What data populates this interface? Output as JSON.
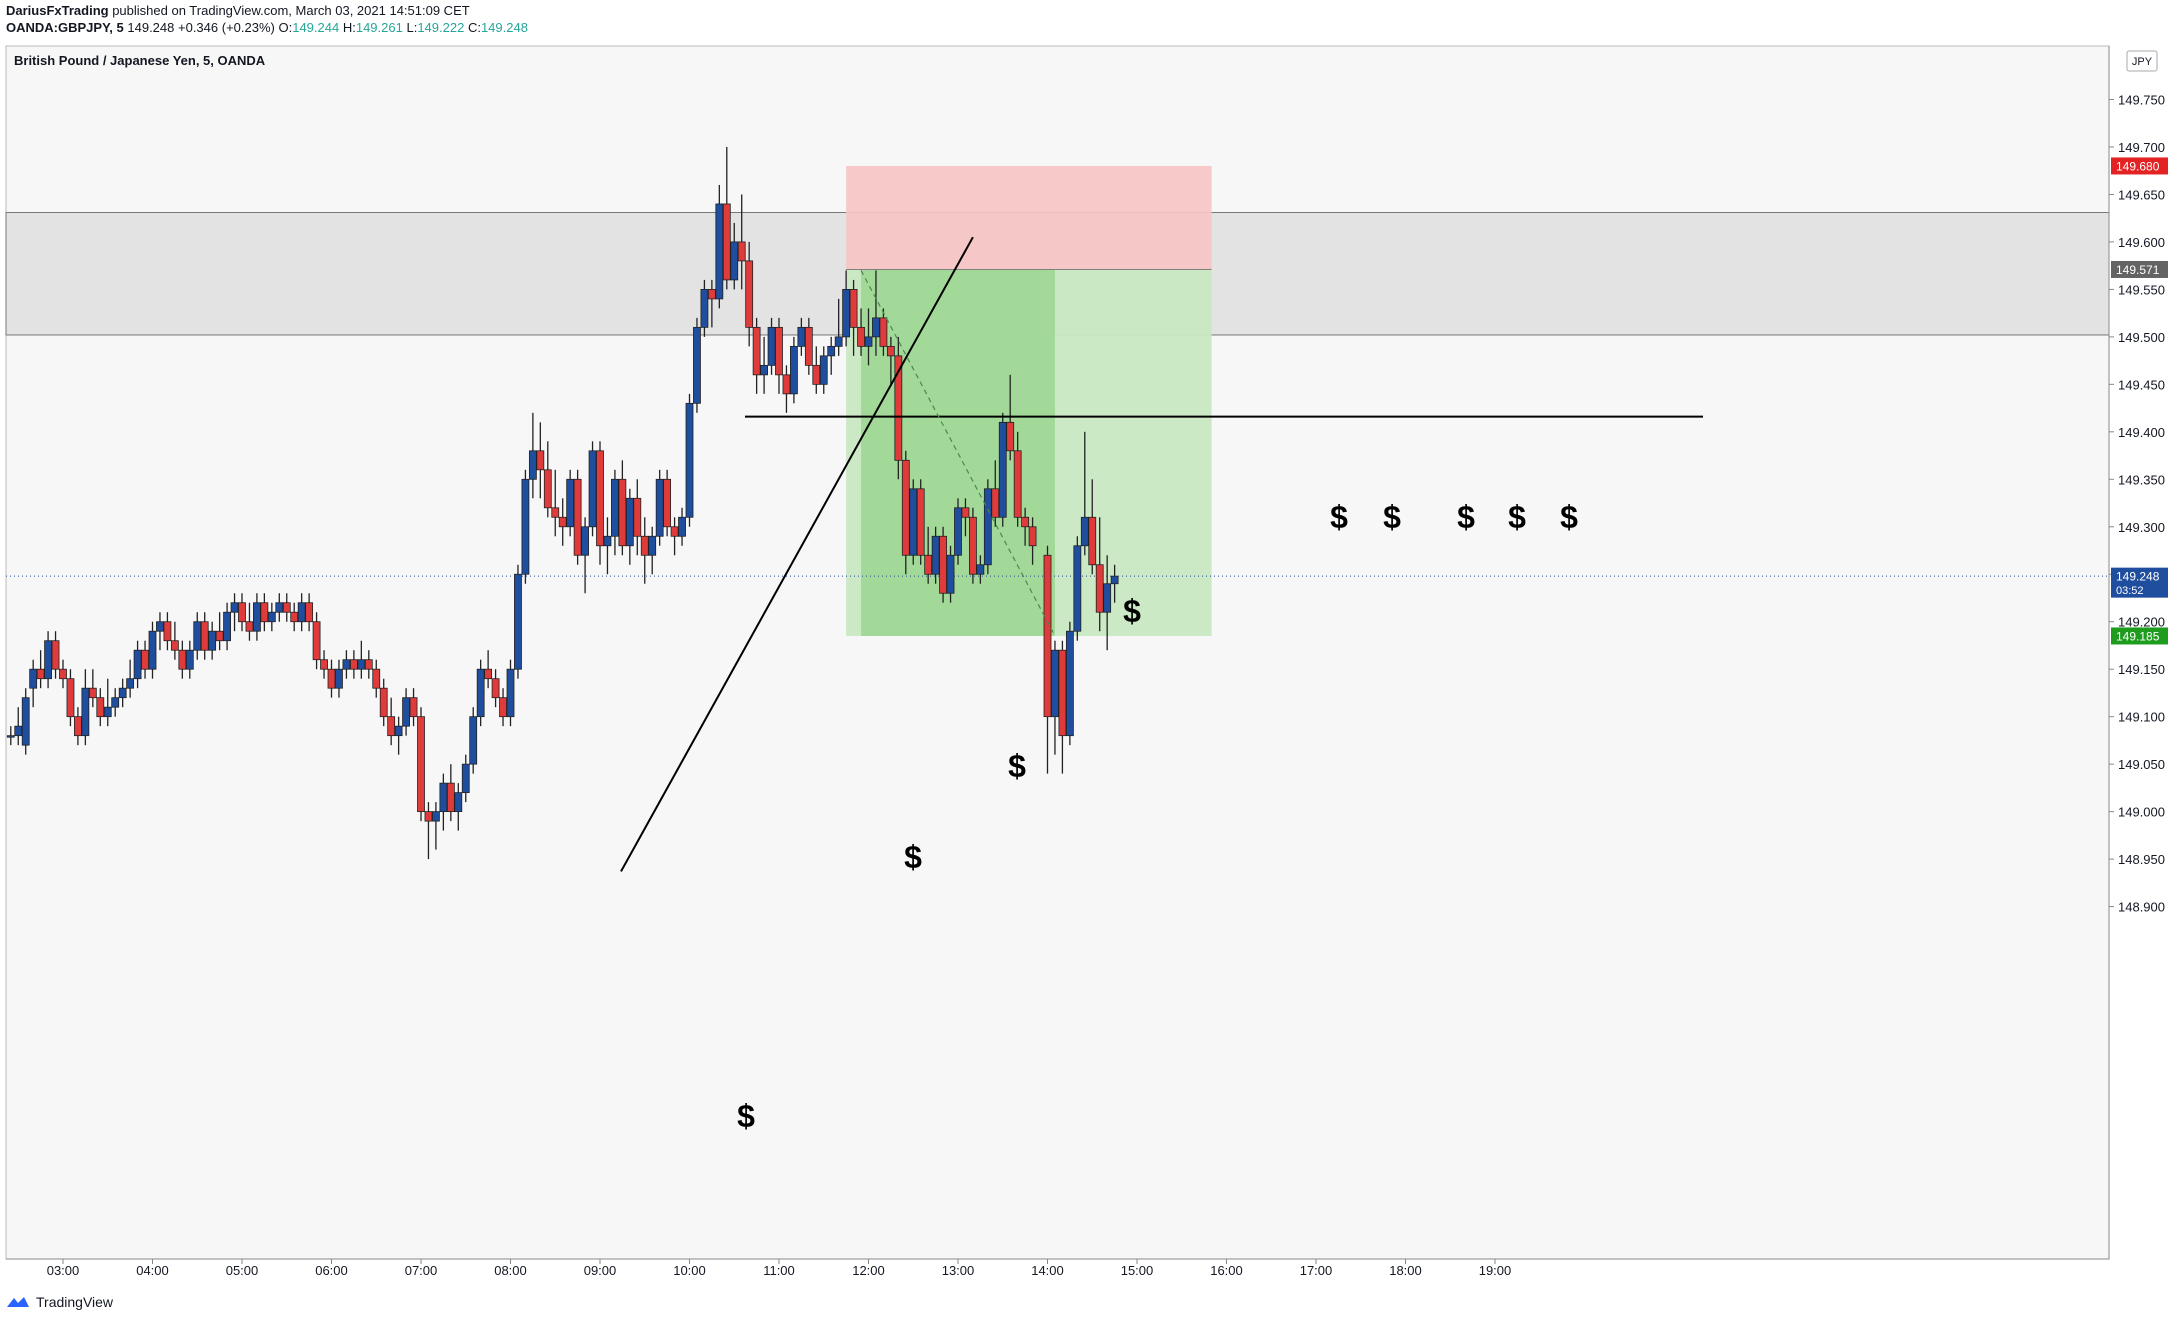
{
  "header": {
    "publisher": "DariusFxTrading",
    "published_text": "published on TradingView.com, March 03, 2021 14:51:09 CET",
    "symbol": "OANDA:GBPJPY, 5",
    "last": "149.248",
    "change": "+0.346 (+0.23%)",
    "o_label": "O:",
    "o": "149.244",
    "h_label": "H:",
    "h": "149.261",
    "l_label": "L:",
    "l": "149.222",
    "c_label": "C:",
    "c": "149.248"
  },
  "chart_title": "British Pound / Japanese Yen, 5, OANDA",
  "currency_badge": "JPY",
  "footer": {
    "brand": "TradingView"
  },
  "colors": {
    "up": "#1f4e9e",
    "down": "#e03b3b",
    "stop_zone": "#f7c4c4",
    "target_zone": "#c9e8c2",
    "target_zone_dark": "#9fd896",
    "resistance_zone": "#e3e3e3",
    "price_badge": "#1f4e9e",
    "stop_badge": "#e32323",
    "entry_badge": "#636363",
    "target_badge": "#1e9c1e"
  },
  "chart_data": {
    "type": "candlestick",
    "title": "British Pound / Japanese Yen, 5, OANDA",
    "ylim": [
      148.86,
      149.79
    ],
    "y_ticks": [
      "149.750",
      "149.700",
      "149.650",
      "149.600",
      "149.550",
      "149.500",
      "149.450",
      "149.400",
      "149.350",
      "149.300",
      "149.250",
      "149.200",
      "149.150",
      "149.100",
      "149.050",
      "149.000",
      "148.950",
      "148.900"
    ],
    "x_ticks": [
      "03:00",
      "04:00",
      "05:00",
      "06:00",
      "07:00",
      "08:00",
      "09:00",
      "10:00",
      "11:00",
      "12:00",
      "13:00",
      "14:00",
      "15:00",
      "16:00",
      "17:00",
      "18:00",
      "19:00"
    ],
    "price_labels": {
      "stop": "149.680",
      "entry": "149.571",
      "current": "149.248",
      "countdown": "03:52",
      "target": "149.185"
    },
    "resistance_zone": [
      149.502,
      149.631
    ],
    "horizontal_level": 149.416,
    "annotation_symbol": "$",
    "annotations": 10,
    "candles": [
      {
        "t": "02:25",
        "o": 149.08,
        "h": 149.09,
        "l": 149.07,
        "c": 149.08
      },
      {
        "t": "02:30",
        "o": 149.08,
        "h": 149.11,
        "l": 149.07,
        "c": 149.09
      },
      {
        "t": "02:35",
        "o": 149.07,
        "h": 149.13,
        "l": 149.06,
        "c": 149.12
      },
      {
        "t": "02:40",
        "o": 149.13,
        "h": 149.16,
        "l": 149.11,
        "c": 149.15
      },
      {
        "t": "02:45",
        "o": 149.15,
        "h": 149.17,
        "l": 149.13,
        "c": 149.14
      },
      {
        "t": "02:50",
        "o": 149.14,
        "h": 149.19,
        "l": 149.13,
        "c": 149.18
      },
      {
        "t": "02:55",
        "o": 149.18,
        "h": 149.19,
        "l": 149.14,
        "c": 149.15
      },
      {
        "t": "03:00",
        "o": 149.15,
        "h": 149.16,
        "l": 149.13,
        "c": 149.14
      },
      {
        "t": "03:05",
        "o": 149.14,
        "h": 149.15,
        "l": 149.09,
        "c": 149.1
      },
      {
        "t": "03:10",
        "o": 149.1,
        "h": 149.11,
        "l": 149.07,
        "c": 149.08
      },
      {
        "t": "03:15",
        "o": 149.08,
        "h": 149.15,
        "l": 149.07,
        "c": 149.13
      },
      {
        "t": "03:20",
        "o": 149.13,
        "h": 149.15,
        "l": 149.11,
        "c": 149.12
      },
      {
        "t": "03:25",
        "o": 149.12,
        "h": 149.13,
        "l": 149.09,
        "c": 149.1
      },
      {
        "t": "03:30",
        "o": 149.1,
        "h": 149.14,
        "l": 149.09,
        "c": 149.11
      },
      {
        "t": "03:35",
        "o": 149.11,
        "h": 149.13,
        "l": 149.1,
        "c": 149.12
      },
      {
        "t": "03:40",
        "o": 149.12,
        "h": 149.14,
        "l": 149.11,
        "c": 149.13
      },
      {
        "t": "03:45",
        "o": 149.13,
        "h": 149.16,
        "l": 149.12,
        "c": 149.14
      },
      {
        "t": "03:50",
        "o": 149.14,
        "h": 149.18,
        "l": 149.13,
        "c": 149.17
      },
      {
        "t": "03:55",
        "o": 149.17,
        "h": 149.18,
        "l": 149.14,
        "c": 149.15
      },
      {
        "t": "04:00",
        "o": 149.15,
        "h": 149.2,
        "l": 149.14,
        "c": 149.19
      },
      {
        "t": "04:05",
        "o": 149.19,
        "h": 149.21,
        "l": 149.17,
        "c": 149.2
      },
      {
        "t": "04:10",
        "o": 149.2,
        "h": 149.21,
        "l": 149.17,
        "c": 149.18
      },
      {
        "t": "04:15",
        "o": 149.18,
        "h": 149.2,
        "l": 149.16,
        "c": 149.17
      },
      {
        "t": "04:20",
        "o": 149.17,
        "h": 149.18,
        "l": 149.14,
        "c": 149.15
      },
      {
        "t": "04:25",
        "o": 149.15,
        "h": 149.18,
        "l": 149.14,
        "c": 149.17
      },
      {
        "t": "04:30",
        "o": 149.17,
        "h": 149.21,
        "l": 149.16,
        "c": 149.2
      },
      {
        "t": "04:35",
        "o": 149.2,
        "h": 149.21,
        "l": 149.16,
        "c": 149.17
      },
      {
        "t": "04:40",
        "o": 149.17,
        "h": 149.2,
        "l": 149.16,
        "c": 149.19
      },
      {
        "t": "04:45",
        "o": 149.19,
        "h": 149.21,
        "l": 149.17,
        "c": 149.18
      },
      {
        "t": "04:50",
        "o": 149.18,
        "h": 149.22,
        "l": 149.17,
        "c": 149.21
      },
      {
        "t": "04:55",
        "o": 149.21,
        "h": 149.23,
        "l": 149.19,
        "c": 149.22
      },
      {
        "t": "05:00",
        "o": 149.22,
        "h": 149.23,
        "l": 149.19,
        "c": 149.2
      },
      {
        "t": "05:05",
        "o": 149.2,
        "h": 149.22,
        "l": 149.18,
        "c": 149.19
      },
      {
        "t": "05:10",
        "o": 149.19,
        "h": 149.23,
        "l": 149.18,
        "c": 149.22
      },
      {
        "t": "05:15",
        "o": 149.22,
        "h": 149.23,
        "l": 149.19,
        "c": 149.2
      },
      {
        "t": "05:20",
        "o": 149.2,
        "h": 149.22,
        "l": 149.19,
        "c": 149.21
      },
      {
        "t": "05:25",
        "o": 149.21,
        "h": 149.23,
        "l": 149.2,
        "c": 149.22
      },
      {
        "t": "05:30",
        "o": 149.22,
        "h": 149.23,
        "l": 149.2,
        "c": 149.21
      },
      {
        "t": "05:35",
        "o": 149.21,
        "h": 149.22,
        "l": 149.19,
        "c": 149.2
      },
      {
        "t": "05:40",
        "o": 149.2,
        "h": 149.23,
        "l": 149.19,
        "c": 149.22
      },
      {
        "t": "05:45",
        "o": 149.22,
        "h": 149.23,
        "l": 149.19,
        "c": 149.2
      },
      {
        "t": "05:50",
        "o": 149.2,
        "h": 149.21,
        "l": 149.15,
        "c": 149.16
      },
      {
        "t": "05:55",
        "o": 149.16,
        "h": 149.17,
        "l": 149.14,
        "c": 149.15
      },
      {
        "t": "06:00",
        "o": 149.15,
        "h": 149.16,
        "l": 149.12,
        "c": 149.13
      },
      {
        "t": "06:05",
        "o": 149.13,
        "h": 149.16,
        "l": 149.12,
        "c": 149.15
      },
      {
        "t": "06:10",
        "o": 149.15,
        "h": 149.17,
        "l": 149.14,
        "c": 149.16
      },
      {
        "t": "06:15",
        "o": 149.16,
        "h": 149.17,
        "l": 149.14,
        "c": 149.15
      },
      {
        "t": "06:20",
        "o": 149.15,
        "h": 149.18,
        "l": 149.14,
        "c": 149.16
      },
      {
        "t": "06:25",
        "o": 149.16,
        "h": 149.17,
        "l": 149.14,
        "c": 149.15
      },
      {
        "t": "06:30",
        "o": 149.15,
        "h": 149.16,
        "l": 149.12,
        "c": 149.13
      },
      {
        "t": "06:35",
        "o": 149.13,
        "h": 149.14,
        "l": 149.09,
        "c": 149.1
      },
      {
        "t": "06:40",
        "o": 149.1,
        "h": 149.12,
        "l": 149.07,
        "c": 149.08
      },
      {
        "t": "06:45",
        "o": 149.08,
        "h": 149.1,
        "l": 149.06,
        "c": 149.09
      },
      {
        "t": "06:50",
        "o": 149.09,
        "h": 149.13,
        "l": 149.08,
        "c": 149.12
      },
      {
        "t": "06:55",
        "o": 149.12,
        "h": 149.13,
        "l": 149.09,
        "c": 149.1
      },
      {
        "t": "07:00",
        "o": 149.1,
        "h": 149.11,
        "l": 148.99,
        "c": 149.0
      },
      {
        "t": "07:05",
        "o": 149.0,
        "h": 149.01,
        "l": 148.95,
        "c": 148.99
      },
      {
        "t": "07:10",
        "o": 148.99,
        "h": 149.01,
        "l": 148.96,
        "c": 149.0
      },
      {
        "t": "07:15",
        "o": 149.0,
        "h": 149.04,
        "l": 148.98,
        "c": 149.03
      },
      {
        "t": "07:20",
        "o": 149.03,
        "h": 149.05,
        "l": 148.99,
        "c": 149.0
      },
      {
        "t": "07:25",
        "o": 149.0,
        "h": 149.03,
        "l": 148.98,
        "c": 149.02
      },
      {
        "t": "07:30",
        "o": 149.02,
        "h": 149.06,
        "l": 149.01,
        "c": 149.05
      },
      {
        "t": "07:35",
        "o": 149.05,
        "h": 149.11,
        "l": 149.04,
        "c": 149.1
      },
      {
        "t": "07:40",
        "o": 149.1,
        "h": 149.16,
        "l": 149.09,
        "c": 149.15
      },
      {
        "t": "07:45",
        "o": 149.15,
        "h": 149.17,
        "l": 149.13,
        "c": 149.14
      },
      {
        "t": "07:50",
        "o": 149.14,
        "h": 149.15,
        "l": 149.11,
        "c": 149.12
      },
      {
        "t": "07:55",
        "o": 149.12,
        "h": 149.13,
        "l": 149.09,
        "c": 149.1
      },
      {
        "t": "08:00",
        "o": 149.1,
        "h": 149.16,
        "l": 149.09,
        "c": 149.15
      },
      {
        "t": "08:05",
        "o": 149.15,
        "h": 149.26,
        "l": 149.14,
        "c": 149.25
      },
      {
        "t": "08:10",
        "o": 149.25,
        "h": 149.36,
        "l": 149.24,
        "c": 149.35
      },
      {
        "t": "08:15",
        "o": 149.35,
        "h": 149.42,
        "l": 149.33,
        "c": 149.38
      },
      {
        "t": "08:20",
        "o": 149.38,
        "h": 149.41,
        "l": 149.33,
        "c": 149.36
      },
      {
        "t": "08:25",
        "o": 149.36,
        "h": 149.39,
        "l": 149.31,
        "c": 149.32
      },
      {
        "t": "08:30",
        "o": 149.32,
        "h": 149.36,
        "l": 149.29,
        "c": 149.31
      },
      {
        "t": "08:35",
        "o": 149.31,
        "h": 149.33,
        "l": 149.28,
        "c": 149.3
      },
      {
        "t": "08:40",
        "o": 149.3,
        "h": 149.36,
        "l": 149.29,
        "c": 149.35
      },
      {
        "t": "08:45",
        "o": 149.35,
        "h": 149.36,
        "l": 149.26,
        "c": 149.27
      },
      {
        "t": "08:50",
        "o": 149.27,
        "h": 149.31,
        "l": 149.23,
        "c": 149.3
      },
      {
        "t": "08:55",
        "o": 149.3,
        "h": 149.39,
        "l": 149.29,
        "c": 149.38
      },
      {
        "t": "09:00",
        "o": 149.38,
        "h": 149.39,
        "l": 149.26,
        "c": 149.28
      },
      {
        "t": "09:05",
        "o": 149.28,
        "h": 149.31,
        "l": 149.25,
        "c": 149.29
      },
      {
        "t": "09:10",
        "o": 149.29,
        "h": 149.36,
        "l": 149.27,
        "c": 149.35
      },
      {
        "t": "09:15",
        "o": 149.35,
        "h": 149.37,
        "l": 149.27,
        "c": 149.28
      },
      {
        "t": "09:20",
        "o": 149.28,
        "h": 149.34,
        "l": 149.26,
        "c": 149.33
      },
      {
        "t": "09:25",
        "o": 149.33,
        "h": 149.35,
        "l": 149.27,
        "c": 149.29
      },
      {
        "t": "09:30",
        "o": 149.29,
        "h": 149.31,
        "l": 149.24,
        "c": 149.27
      },
      {
        "t": "09:35",
        "o": 149.27,
        "h": 149.3,
        "l": 149.25,
        "c": 149.29
      },
      {
        "t": "09:40",
        "o": 149.29,
        "h": 149.36,
        "l": 149.28,
        "c": 149.35
      },
      {
        "t": "09:45",
        "o": 149.35,
        "h": 149.36,
        "l": 149.29,
        "c": 149.3
      },
      {
        "t": "09:50",
        "o": 149.3,
        "h": 149.31,
        "l": 149.27,
        "c": 149.29
      },
      {
        "t": "09:55",
        "o": 149.29,
        "h": 149.32,
        "l": 149.28,
        "c": 149.31
      },
      {
        "t": "10:00",
        "o": 149.31,
        "h": 149.44,
        "l": 149.3,
        "c": 149.43
      },
      {
        "t": "10:05",
        "o": 149.43,
        "h": 149.52,
        "l": 149.42,
        "c": 149.51
      },
      {
        "t": "10:10",
        "o": 149.51,
        "h": 149.56,
        "l": 149.5,
        "c": 149.55
      },
      {
        "t": "10:15",
        "o": 149.55,
        "h": 149.56,
        "l": 149.51,
        "c": 149.54
      },
      {
        "t": "10:20",
        "o": 149.54,
        "h": 149.66,
        "l": 149.53,
        "c": 149.64
      },
      {
        "t": "10:25",
        "o": 149.64,
        "h": 149.7,
        "l": 149.55,
        "c": 149.56
      },
      {
        "t": "10:30",
        "o": 149.56,
        "h": 149.62,
        "l": 149.55,
        "c": 149.6
      },
      {
        "t": "10:35",
        "o": 149.6,
        "h": 149.65,
        "l": 149.55,
        "c": 149.58
      },
      {
        "t": "10:40",
        "o": 149.58,
        "h": 149.6,
        "l": 149.49,
        "c": 149.51
      },
      {
        "t": "10:45",
        "o": 149.51,
        "h": 149.52,
        "l": 149.44,
        "c": 149.46
      },
      {
        "t": "10:50",
        "o": 149.46,
        "h": 149.5,
        "l": 149.44,
        "c": 149.47
      },
      {
        "t": "10:55",
        "o": 149.47,
        "h": 149.52,
        "l": 149.46,
        "c": 149.51
      },
      {
        "t": "11:00",
        "o": 149.51,
        "h": 149.52,
        "l": 149.44,
        "c": 149.46
      },
      {
        "t": "11:05",
        "o": 149.46,
        "h": 149.47,
        "l": 149.42,
        "c": 149.44
      },
      {
        "t": "11:10",
        "o": 149.44,
        "h": 149.5,
        "l": 149.43,
        "c": 149.49
      },
      {
        "t": "11:15",
        "o": 149.49,
        "h": 149.52,
        "l": 149.48,
        "c": 149.51
      },
      {
        "t": "11:20",
        "o": 149.51,
        "h": 149.52,
        "l": 149.46,
        "c": 149.47
      },
      {
        "t": "11:25",
        "o": 149.47,
        "h": 149.49,
        "l": 149.44,
        "c": 149.45
      },
      {
        "t": "11:30",
        "o": 149.45,
        "h": 149.49,
        "l": 149.44,
        "c": 149.48
      },
      {
        "t": "11:35",
        "o": 149.48,
        "h": 149.5,
        "l": 149.46,
        "c": 149.49
      },
      {
        "t": "11:40",
        "o": 149.49,
        "h": 149.54,
        "l": 149.48,
        "c": 149.5
      },
      {
        "t": "11:45",
        "o": 149.5,
        "h": 149.57,
        "l": 149.49,
        "c": 149.55
      },
      {
        "t": "11:50",
        "o": 149.55,
        "h": 149.56,
        "l": 149.48,
        "c": 149.51
      },
      {
        "t": "11:55",
        "o": 149.51,
        "h": 149.53,
        "l": 149.48,
        "c": 149.49
      },
      {
        "t": "12:00",
        "o": 149.49,
        "h": 149.53,
        "l": 149.47,
        "c": 149.5
      },
      {
        "t": "12:05",
        "o": 149.5,
        "h": 149.57,
        "l": 149.48,
        "c": 149.52
      },
      {
        "t": "12:10",
        "o": 149.52,
        "h": 149.53,
        "l": 149.48,
        "c": 149.49
      },
      {
        "t": "12:15",
        "o": 149.49,
        "h": 149.5,
        "l": 149.45,
        "c": 149.48
      },
      {
        "t": "12:20",
        "o": 149.48,
        "h": 149.5,
        "l": 149.35,
        "c": 149.37
      },
      {
        "t": "12:25",
        "o": 149.37,
        "h": 149.38,
        "l": 149.25,
        "c": 149.27
      },
      {
        "t": "12:30",
        "o": 149.27,
        "h": 149.35,
        "l": 149.26,
        "c": 149.34
      },
      {
        "t": "12:35",
        "o": 149.34,
        "h": 149.35,
        "l": 149.26,
        "c": 149.27
      },
      {
        "t": "12:40",
        "o": 149.27,
        "h": 149.3,
        "l": 149.24,
        "c": 149.25
      },
      {
        "t": "12:45",
        "o": 149.25,
        "h": 149.3,
        "l": 149.24,
        "c": 149.29
      },
      {
        "t": "12:50",
        "o": 149.29,
        "h": 149.3,
        "l": 149.22,
        "c": 149.23
      },
      {
        "t": "12:55",
        "o": 149.23,
        "h": 149.28,
        "l": 149.22,
        "c": 149.27
      },
      {
        "t": "13:00",
        "o": 149.27,
        "h": 149.33,
        "l": 149.26,
        "c": 149.32
      },
      {
        "t": "13:05",
        "o": 149.32,
        "h": 149.33,
        "l": 149.29,
        "c": 149.31
      },
      {
        "t": "13:10",
        "o": 149.31,
        "h": 149.32,
        "l": 149.24,
        "c": 149.25
      },
      {
        "t": "13:15",
        "o": 149.25,
        "h": 149.27,
        "l": 149.24,
        "c": 149.26
      },
      {
        "t": "13:20",
        "o": 149.26,
        "h": 149.35,
        "l": 149.25,
        "c": 149.34
      },
      {
        "t": "13:25",
        "o": 149.34,
        "h": 149.37,
        "l": 149.3,
        "c": 149.31
      },
      {
        "t": "13:30",
        "o": 149.31,
        "h": 149.42,
        "l": 149.3,
        "c": 149.41
      },
      {
        "t": "13:35",
        "o": 149.41,
        "h": 149.46,
        "l": 149.37,
        "c": 149.38
      },
      {
        "t": "13:40",
        "o": 149.38,
        "h": 149.4,
        "l": 149.3,
        "c": 149.31
      },
      {
        "t": "13:45",
        "o": 149.31,
        "h": 149.32,
        "l": 149.28,
        "c": 149.3
      },
      {
        "t": "13:50",
        "o": 149.3,
        "h": 149.31,
        "l": 149.26,
        "c": 149.28
      },
      {
        "t": "14:00",
        "o": 149.27,
        "h": 149.28,
        "l": 149.04,
        "c": 149.1
      },
      {
        "t": "14:05",
        "o": 149.1,
        "h": 149.18,
        "l": 149.06,
        "c": 149.17
      },
      {
        "t": "14:10",
        "o": 149.17,
        "h": 149.18,
        "l": 149.04,
        "c": 149.08
      },
      {
        "t": "14:15",
        "o": 149.08,
        "h": 149.2,
        "l": 149.07,
        "c": 149.19
      },
      {
        "t": "14:20",
        "o": 149.19,
        "h": 149.29,
        "l": 149.18,
        "c": 149.28
      },
      {
        "t": "14:25",
        "o": 149.28,
        "h": 149.4,
        "l": 149.27,
        "c": 149.31
      },
      {
        "t": "14:30",
        "o": 149.31,
        "h": 149.35,
        "l": 149.25,
        "c": 149.26
      },
      {
        "t": "14:35",
        "o": 149.26,
        "h": 149.31,
        "l": 149.19,
        "c": 149.21
      },
      {
        "t": "14:40",
        "o": 149.21,
        "h": 149.27,
        "l": 149.17,
        "c": 149.24
      },
      {
        "t": "14:45",
        "o": 149.24,
        "h": 149.26,
        "l": 149.22,
        "c": 149.248
      }
    ]
  }
}
